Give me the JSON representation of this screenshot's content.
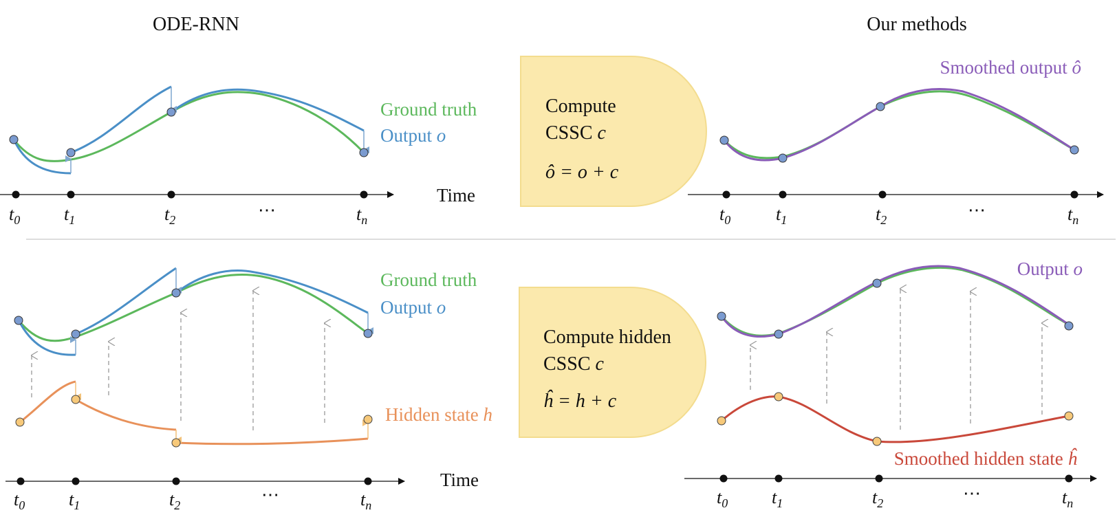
{
  "titles": {
    "left": "ODE-RNN",
    "right": "Our methods"
  },
  "top_left": {
    "ground_truth": "Ground truth",
    "output_text": "Output ",
    "output_sym": "o",
    "time": "Time"
  },
  "top_box": {
    "line1": "Compute",
    "line2_text": "CSSC ",
    "line2_sym": "c",
    "formula": "ô = o + c"
  },
  "top_right": {
    "smoothed_text": "Smoothed output ",
    "smoothed_sym": "ô"
  },
  "bottom_left": {
    "ground_truth": "Ground truth",
    "output_text": "Output ",
    "output_sym": "o",
    "hidden_text": "Hidden state ",
    "hidden_sym": "h",
    "time": "Time"
  },
  "bottom_box": {
    "line1": "Compute hidden",
    "line2_text": "CSSC ",
    "line2_sym": "c",
    "formula": "ĥ = h + c"
  },
  "bottom_right": {
    "output_text": "Output ",
    "output_sym": "o",
    "smoothed_hidden_text": "Smoothed hidden state ",
    "smoothed_hidden_sym": "ĥ"
  },
  "ticks": {
    "t": "t",
    "subs": [
      "0",
      "1",
      "2",
      "n"
    ],
    "ellipsis": "⋯"
  },
  "colors": {
    "ground_truth": "#5cb85c",
    "output": "#4a8fc7",
    "smoothed": "#8a5cb8",
    "hidden": "#e8915a",
    "smoothed_hidden": "#c9483a",
    "box_fill": "#fbe9ad",
    "box_stroke": "#f3dc8e",
    "dashed_arrow": "#999999"
  }
}
